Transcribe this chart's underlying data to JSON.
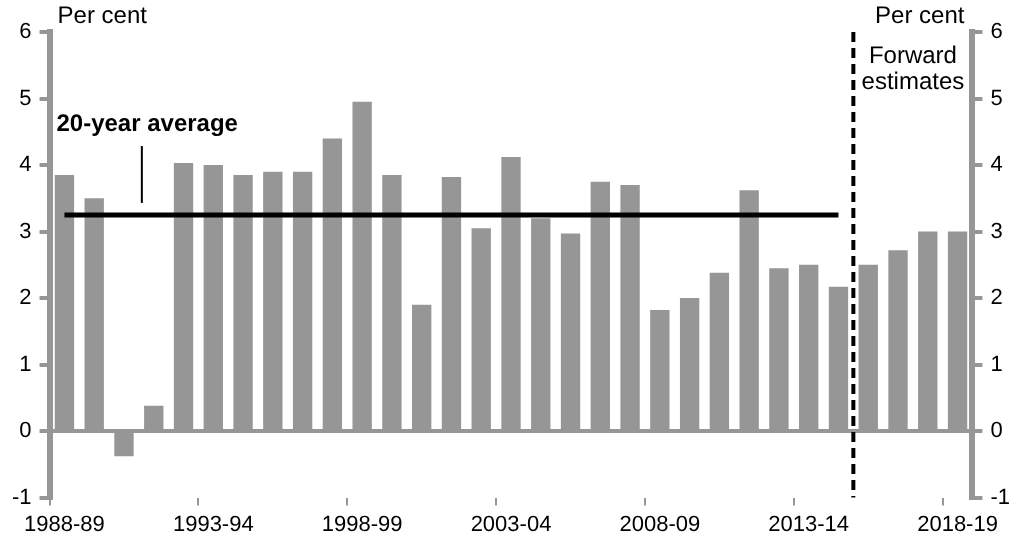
{
  "chart_data": {
    "type": "bar",
    "ylabel": "Per cent",
    "y2label": "Per cent",
    "categories": [
      "1988-89",
      null,
      null,
      null,
      null,
      "1993-94",
      null,
      null,
      null,
      null,
      "1998-99",
      null,
      null,
      null,
      null,
      "2003-04",
      null,
      null,
      null,
      null,
      "2008-09",
      null,
      null,
      null,
      null,
      "2013-14",
      null,
      null,
      null,
      null,
      "2018-19"
    ],
    "series": [
      {
        "color": "#969696",
        "values": [
          3.85,
          3.5,
          -0.38,
          0.38,
          4.03,
          4.0,
          3.85,
          3.9,
          3.9,
          4.4,
          4.95,
          3.85,
          1.9,
          3.82,
          3.05,
          4.12,
          3.2,
          2.97,
          3.75,
          3.7,
          1.82,
          2.0,
          2.38,
          3.62,
          2.45,
          2.5,
          2.17,
          2.5,
          2.72,
          3.0,
          3.0
        ]
      },
      {
        "type": "line",
        "color": "#000000",
        "values": [
          3.25,
          3.25,
          3.25,
          3.25,
          3.25,
          3.25,
          3.25,
          3.25,
          3.25,
          3.25,
          3.25,
          3.25,
          3.25,
          3.25,
          3.25,
          3.25,
          3.25,
          3.25,
          3.25,
          3.25,
          3.25,
          3.25,
          3.25,
          3.25,
          3.25,
          3.25,
          3.25,
          null,
          null,
          null,
          null
        ]
      }
    ],
    "ylim": [
      -1,
      6
    ],
    "yticks": [
      -1,
      0,
      1,
      2,
      3,
      4,
      5,
      6
    ],
    "y2lim": [
      -1,
      6
    ],
    "y2ticks": [
      -1,
      0,
      1,
      2,
      3,
      4,
      5,
      6
    ],
    "annotations": [
      "20-year average",
      "Forward estimates"
    ],
    "grid": false,
    "legend": false
  }
}
